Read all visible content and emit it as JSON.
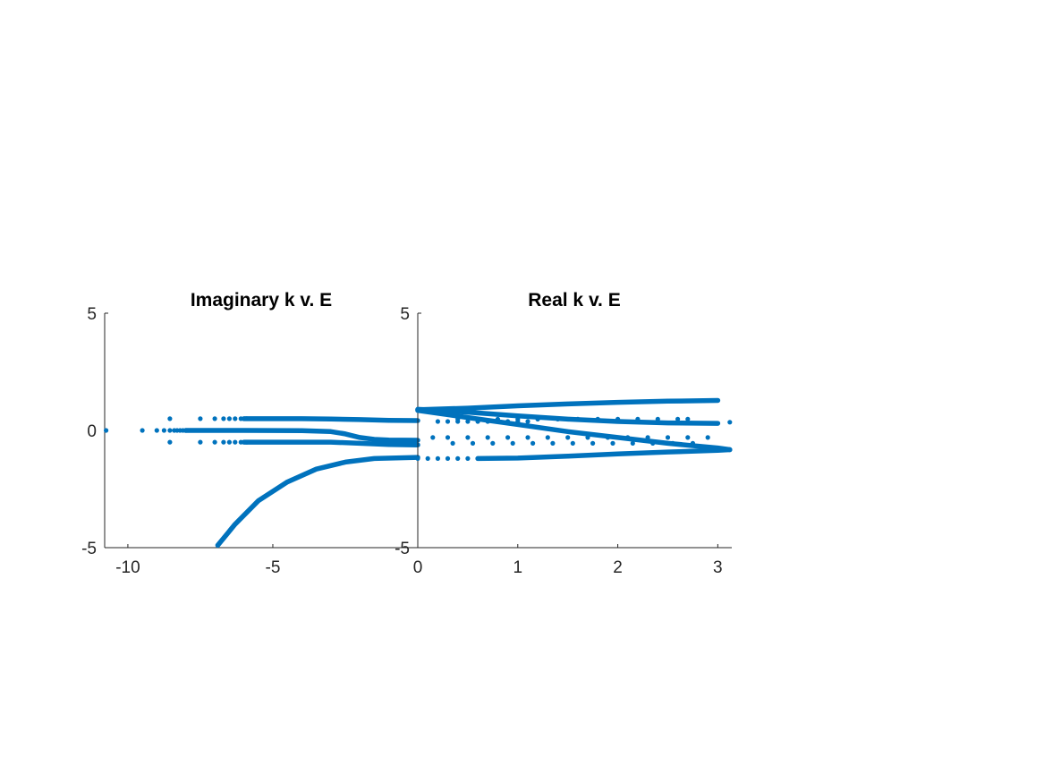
{
  "colors": {
    "series": "#0072BD",
    "axis": "#262626",
    "text": "#000000"
  },
  "chart_data": [
    {
      "type": "scatter",
      "title": "Imaginary k v. E",
      "xlabel": "",
      "ylabel": "",
      "xlim": [
        -10.8,
        0
      ],
      "ylim": [
        -5,
        5
      ],
      "xticks": [
        -10,
        -5
      ],
      "yticks": [
        -5,
        0,
        5
      ],
      "xtick_labels": [
        "-10",
        "-5"
      ],
      "ytick_labels": [
        "-5",
        "0",
        "5"
      ],
      "grid": false,
      "series": [
        {
          "points": [
            [
              -10.75,
              0.0
            ],
            [
              -9.5,
              0.0
            ],
            [
              -9.0,
              0.0
            ],
            [
              -8.75,
              0.0
            ],
            [
              -8.55,
              0.0
            ],
            [
              -8.4,
              0.0
            ],
            [
              -8.3,
              0.0
            ],
            [
              -8.2,
              0.0
            ],
            [
              -8.1,
              0.0
            ],
            [
              -8.0,
              0.0
            ],
            [
              -8.55,
              0.5
            ],
            [
              -7.5,
              0.5
            ],
            [
              -7.0,
              0.5
            ],
            [
              -6.7,
              0.5
            ],
            [
              -6.5,
              0.5
            ],
            [
              -6.3,
              0.5
            ],
            [
              -6.1,
              0.5
            ],
            [
              -5.9,
              0.5
            ],
            [
              -8.55,
              -0.5
            ],
            [
              -7.5,
              -0.5
            ],
            [
              -7.0,
              -0.5
            ],
            [
              -6.7,
              -0.5
            ],
            [
              -6.5,
              -0.5
            ],
            [
              -6.3,
              -0.5
            ],
            [
              -6.1,
              -0.5
            ],
            [
              -5.9,
              -0.5
            ]
          ],
          "curves": [
            [
              [
                -8.0,
                0.0
              ],
              [
                -6.0,
                0.0
              ],
              [
                -4.0,
                -0.01
              ],
              [
                -3.0,
                -0.05
              ],
              [
                -2.5,
                -0.15
              ],
              [
                -2.0,
                -0.3
              ],
              [
                -1.5,
                -0.38
              ],
              [
                -1.0,
                -0.41
              ],
              [
                0.0,
                -0.42
              ]
            ],
            [
              [
                -6.0,
                0.5
              ],
              [
                -4.0,
                0.5
              ],
              [
                -3.0,
                0.49
              ],
              [
                -2.0,
                0.46
              ],
              [
                -1.0,
                0.43
              ],
              [
                0.0,
                0.42
              ]
            ],
            [
              [
                -6.0,
                -0.5
              ],
              [
                -4.0,
                -0.5
              ],
              [
                -3.0,
                -0.5
              ],
              [
                -2.0,
                -0.55
              ],
              [
                -1.0,
                -0.6
              ],
              [
                0.0,
                -0.62
              ]
            ],
            [
              [
                -6.9,
                -4.9
              ],
              [
                -6.3,
                -4.0
              ],
              [
                -5.5,
                -3.0
              ],
              [
                -4.5,
                -2.2
              ],
              [
                -3.5,
                -1.65
              ],
              [
                -2.5,
                -1.35
              ],
              [
                -1.5,
                -1.2
              ],
              [
                0.0,
                -1.15
              ]
            ]
          ]
        }
      ]
    },
    {
      "type": "scatter",
      "title": "Real k v. E",
      "xlabel": "",
      "ylabel": "",
      "xlim": [
        0,
        3.14
      ],
      "ylim": [
        -5,
        5
      ],
      "xticks": [
        0,
        1,
        2,
        3
      ],
      "yticks": [
        -5,
        5
      ],
      "xtick_labels": [
        "0",
        "1",
        "2",
        "3"
      ],
      "ytick_labels": [
        "-5",
        "5"
      ],
      "grid": false,
      "series": [
        {
          "points": [
            [
              3.12,
              0.35
            ],
            [
              0.2,
              0.38
            ],
            [
              0.3,
              0.38
            ],
            [
              0.4,
              0.38
            ],
            [
              0.5,
              0.38
            ],
            [
              0.6,
              0.38
            ],
            [
              0.7,
              0.38
            ],
            [
              0.8,
              0.38
            ],
            [
              0.9,
              0.38
            ],
            [
              1.0,
              0.38
            ],
            [
              1.1,
              0.38
            ],
            [
              0.4,
              0.48
            ],
            [
              0.6,
              0.48
            ],
            [
              0.8,
              0.48
            ],
            [
              1.0,
              0.48
            ],
            [
              1.2,
              0.48
            ],
            [
              1.4,
              0.48
            ],
            [
              1.6,
              0.48
            ],
            [
              1.8,
              0.48
            ],
            [
              2.0,
              0.48
            ],
            [
              2.2,
              0.48
            ],
            [
              2.4,
              0.48
            ],
            [
              2.6,
              0.48
            ],
            [
              2.7,
              0.48
            ],
            [
              0.15,
              -0.3
            ],
            [
              0.3,
              -0.3
            ],
            [
              0.5,
              -0.3
            ],
            [
              0.7,
              -0.3
            ],
            [
              0.9,
              -0.3
            ],
            [
              1.1,
              -0.3
            ],
            [
              1.3,
              -0.3
            ],
            [
              1.5,
              -0.3
            ],
            [
              1.7,
              -0.3
            ],
            [
              1.9,
              -0.3
            ],
            [
              2.1,
              -0.3
            ],
            [
              2.3,
              -0.3
            ],
            [
              2.5,
              -0.3
            ],
            [
              2.7,
              -0.3
            ],
            [
              2.9,
              -0.3
            ],
            [
              0.35,
              -0.55
            ],
            [
              0.55,
              -0.55
            ],
            [
              0.75,
              -0.55
            ],
            [
              0.95,
              -0.55
            ],
            [
              1.15,
              -0.55
            ],
            [
              1.35,
              -0.55
            ],
            [
              1.55,
              -0.55
            ],
            [
              1.75,
              -0.55
            ],
            [
              1.95,
              -0.55
            ],
            [
              2.15,
              -0.55
            ],
            [
              2.35,
              -0.55
            ],
            [
              2.55,
              -0.55
            ],
            [
              2.75,
              -0.55
            ],
            [
              0.0,
              -1.2
            ],
            [
              0.1,
              -1.2
            ],
            [
              0.2,
              -1.2
            ],
            [
              0.3,
              -1.2
            ],
            [
              0.4,
              -1.2
            ],
            [
              0.5,
              -1.2
            ],
            [
              0.6,
              -1.2
            ],
            [
              0.7,
              -1.2
            ]
          ],
          "curves": [
            [
              [
                0.0,
                0.88
              ],
              [
                0.5,
                0.95
              ],
              [
                1.0,
                1.05
              ],
              [
                1.5,
                1.13
              ],
              [
                2.0,
                1.2
              ],
              [
                2.5,
                1.25
              ],
              [
                3.0,
                1.28
              ]
            ],
            [
              [
                0.0,
                0.9
              ],
              [
                0.5,
                0.78
              ],
              [
                1.0,
                0.62
              ],
              [
                1.5,
                0.48
              ],
              [
                2.0,
                0.38
              ],
              [
                2.5,
                0.32
              ],
              [
                3.0,
                0.3
              ]
            ],
            [
              [
                0.0,
                0.85
              ],
              [
                0.5,
                0.55
              ],
              [
                1.0,
                0.25
              ],
              [
                1.5,
                -0.05
              ],
              [
                2.0,
                -0.3
              ],
              [
                2.5,
                -0.55
              ],
              [
                3.0,
                -0.75
              ],
              [
                3.12,
                -0.82
              ]
            ],
            [
              [
                0.6,
                -1.2
              ],
              [
                1.0,
                -1.18
              ],
              [
                1.5,
                -1.1
              ],
              [
                2.0,
                -1.0
              ],
              [
                2.5,
                -0.92
              ],
              [
                3.0,
                -0.85
              ],
              [
                3.12,
                -0.82
              ]
            ]
          ]
        }
      ]
    }
  ]
}
